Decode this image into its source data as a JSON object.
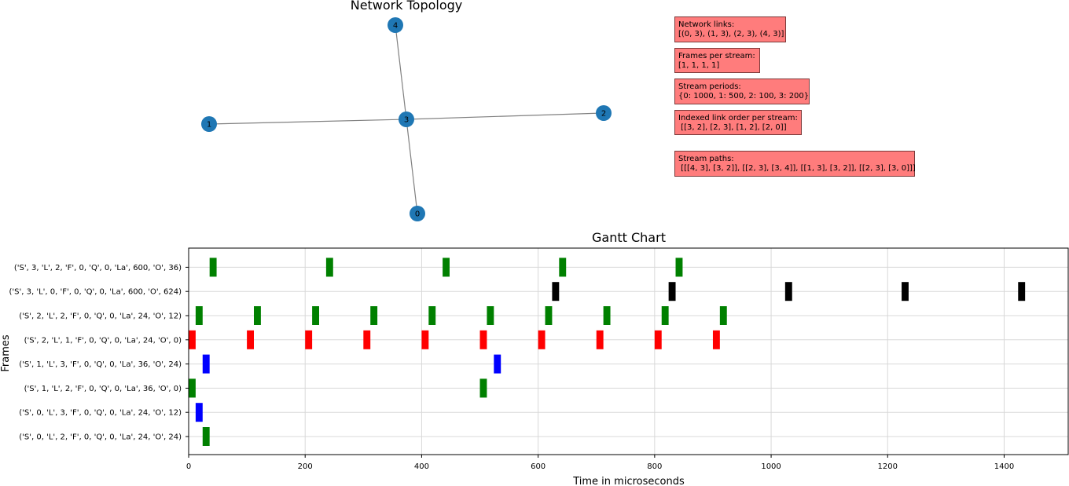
{
  "topology": {
    "title": "Network  Topology",
    "nodes": [
      "0",
      "1",
      "2",
      "3",
      "4"
    ],
    "edges": [
      [
        0,
        3
      ],
      [
        1,
        3
      ],
      [
        2,
        3
      ],
      [
        4,
        3
      ]
    ],
    "node_color": "#1f77b4",
    "edge_color": "#808080"
  },
  "info_boxes": [
    {
      "id": "network-links",
      "label": "Network links:",
      "value": "[(0, 3), (1, 3), (2, 3), (4, 3)]"
    },
    {
      "id": "frames-per-stream",
      "label": "Frames per stream:",
      "value": "[1, 1, 1, 1]"
    },
    {
      "id": "stream-periods",
      "label": "Stream periods:",
      "value": "{0: 1000, 1: 500, 2: 100, 3: 200}"
    },
    {
      "id": "indexed-link-order",
      "label": "Indexed link order per stream:",
      "value": " [[3, 2], [2, 3], [1, 2], [2, 0]]"
    },
    {
      "id": "stream-paths",
      "label": "Stream paths:",
      "value": " [[[4, 3], [3, 2]], [[2, 3], [3, 4]], [[1, 3], [3, 2]], [[2, 3], [3, 0]]]"
    }
  ],
  "chart_data": {
    "type": "gantt",
    "title": "Gantt Chart",
    "xlabel": "Time in microseconds",
    "ylabel": "Frames",
    "xlim": [
      0,
      1510
    ],
    "xticks": [
      0,
      200,
      400,
      600,
      800,
      1000,
      1200,
      1400
    ],
    "grid": true,
    "categories": [
      "('S', 0, 'L', 2, 'F', 0, 'Q', 0, 'La', 24, 'O', 24)",
      "('S', 0, 'L', 3, 'F', 0, 'Q', 0, 'La', 24, 'O', 12)",
      "('S', 1, 'L', 2, 'F', 0, 'Q', 0, 'La', 36, 'O', 0)",
      "('S', 1, 'L', 3, 'F', 0, 'Q', 0, 'La', 36, 'O', 24)",
      "('S', 2, 'L', 1, 'F', 0, 'Q', 0, 'La', 24, 'O', 0)",
      "('S', 2, 'L', 2, 'F', 0, 'Q', 0, 'La', 24, 'O', 12)",
      "('S', 3, 'L', 0, 'F', 0, 'Q', 0, 'La', 600, 'O', 624)",
      "('S', 3, 'L', 2, 'F', 0, 'Q', 0, 'La', 600, 'O', 36)"
    ],
    "series": [
      {
        "row": 0,
        "color": "green",
        "duration": 12,
        "starts": [
          24
        ]
      },
      {
        "row": 1,
        "color": "blue",
        "duration": 12,
        "starts": [
          12
        ]
      },
      {
        "row": 2,
        "color": "green",
        "duration": 12,
        "starts": [
          0,
          500
        ]
      },
      {
        "row": 3,
        "color": "blue",
        "duration": 12,
        "starts": [
          24,
          524
        ]
      },
      {
        "row": 4,
        "color": "red",
        "duration": 12,
        "starts": [
          0,
          100,
          200,
          300,
          400,
          500,
          600,
          700,
          800,
          900
        ]
      },
      {
        "row": 5,
        "color": "green",
        "duration": 12,
        "starts": [
          12,
          112,
          212,
          312,
          412,
          512,
          612,
          712,
          812,
          912
        ]
      },
      {
        "row": 6,
        "color": "black",
        "duration": 12,
        "starts": [
          624,
          824,
          1024,
          1224,
          1424
        ]
      },
      {
        "row": 7,
        "color": "green",
        "duration": 12,
        "starts": [
          36,
          236,
          436,
          636,
          836
        ]
      }
    ]
  }
}
